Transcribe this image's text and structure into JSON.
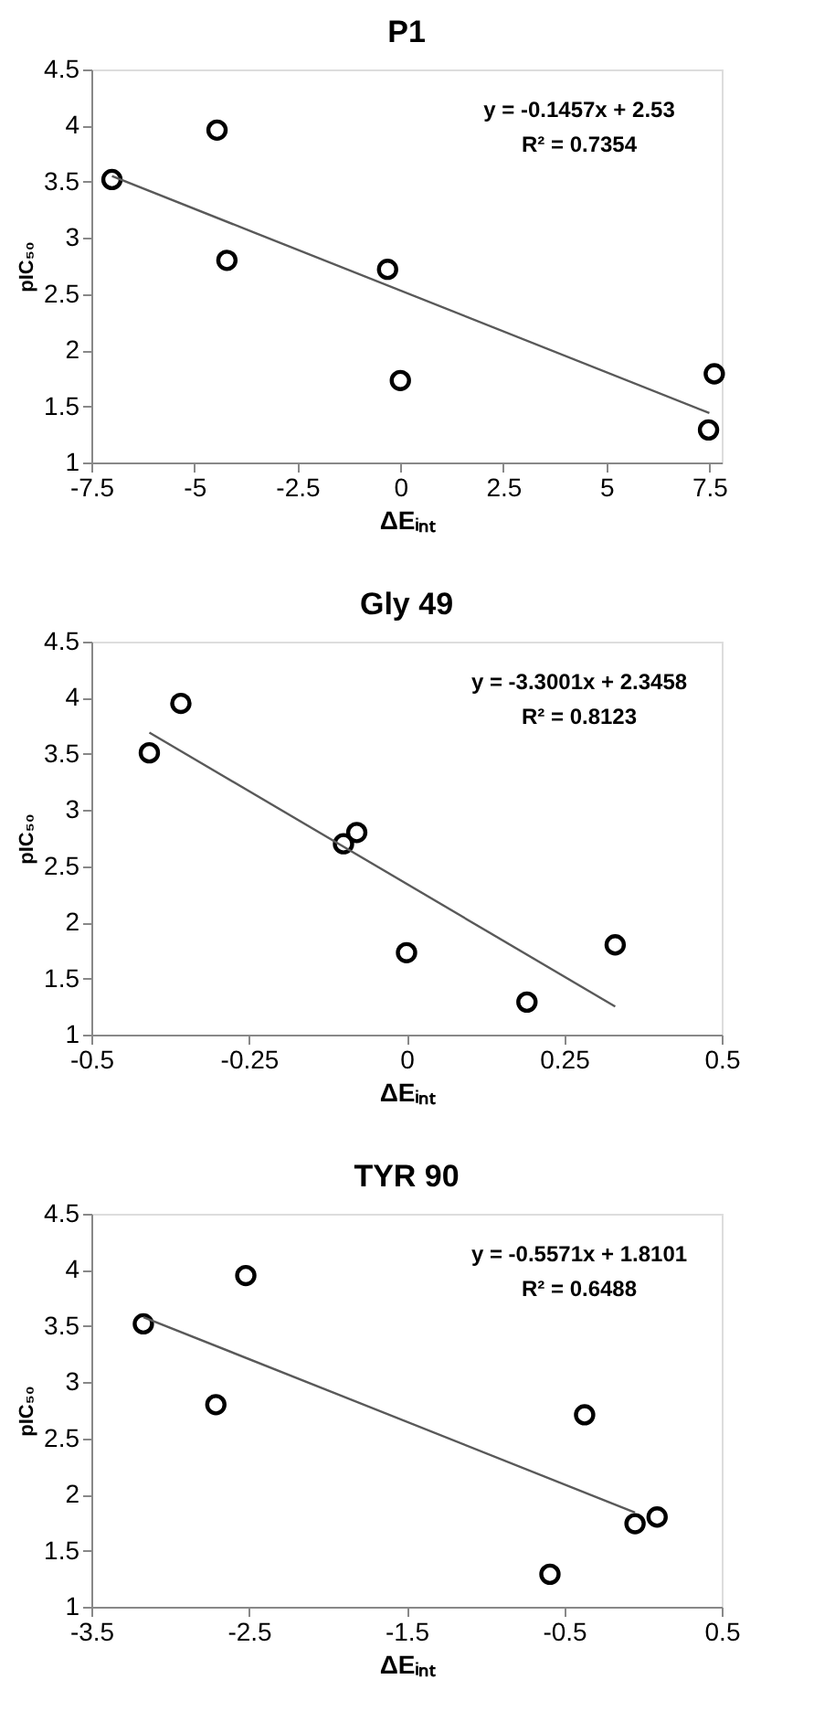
{
  "chart_data": [
    {
      "type": "scatter",
      "title": "P1",
      "xlabel": "ΔEᵢₙₜ",
      "ylabel": "pIC₅₀",
      "xlim": [
        -7.5,
        7.8
      ],
      "xticks": [
        -7.5,
        -5,
        -2.5,
        0,
        2.5,
        5,
        7.5
      ],
      "ylim": [
        1,
        4.5
      ],
      "yticks": [
        1,
        1.5,
        2,
        2.5,
        3,
        3.5,
        4,
        4.5
      ],
      "grid": false,
      "marker": "circle",
      "annotations": [
        "y = -0.1457x + 2.53",
        "R² = 0.7354"
      ],
      "series": [
        {
          "color": "#000000",
          "x": [
            -7.0,
            -4.45,
            -4.21,
            -0.31,
            0.0,
            7.62,
            7.48
          ],
          "values": [
            3.52,
            3.96,
            2.8,
            2.72,
            1.73,
            1.79,
            1.29
          ]
        },
        {
          "type": "line",
          "marker": "none",
          "color": "#595959",
          "x": [
            -7.0,
            7.5
          ],
          "values": [
            3.55,
            1.44
          ]
        }
      ]
    },
    {
      "type": "scatter",
      "title": "Gly 49",
      "xlabel": "ΔEᵢₙₜ",
      "ylabel": "pIC₅₀",
      "xlim": [
        -0.5,
        0.5
      ],
      "xticks": [
        -0.5,
        -0.25,
        0,
        0.25,
        0.5
      ],
      "ylim": [
        1,
        4.5
      ],
      "yticks": [
        1,
        1.5,
        2,
        2.5,
        3,
        3.5,
        4,
        4.5
      ],
      "grid": false,
      "marker": "circle",
      "annotations": [
        "y = -3.3001x + 2.3458",
        "R² = 0.8123"
      ],
      "series": [
        {
          "color": "#000000",
          "x": [
            -0.408,
            -0.358,
            -0.1,
            -0.079,
            0.0,
            0.191,
            0.331
          ],
          "values": [
            3.51,
            3.95,
            2.7,
            2.8,
            1.73,
            1.29,
            1.8
          ]
        },
        {
          "type": "line",
          "marker": "none",
          "color": "#595959",
          "x": [
            -0.408,
            0.331
          ],
          "values": [
            3.69,
            1.25
          ]
        }
      ]
    },
    {
      "type": "scatter",
      "title": "TYR 90",
      "xlabel": "ΔEᵢₙₜ",
      "ylabel": "pIC₅₀",
      "xlim": [
        -3.5,
        0.5
      ],
      "xticks": [
        -3.5,
        -2.5,
        -1.5,
        -0.5,
        0.5
      ],
      "ylim": [
        1,
        4.5
      ],
      "yticks": [
        1,
        1.5,
        2,
        2.5,
        3,
        3.5,
        4,
        4.5
      ],
      "grid": false,
      "marker": "circle",
      "annotations": [
        "y = -0.5571x + 1.8101",
        "R² = 0.6488"
      ],
      "series": [
        {
          "color": "#000000",
          "x": [
            -3.17,
            -2.52,
            -2.71,
            -0.37,
            -0.59,
            -0.05,
            0.09
          ],
          "values": [
            3.52,
            3.95,
            2.8,
            2.71,
            1.29,
            1.74,
            1.8
          ]
        },
        {
          "type": "line",
          "marker": "none",
          "color": "#595959",
          "x": [
            -3.17,
            -0.05
          ],
          "values": [
            3.58,
            1.84
          ]
        }
      ]
    }
  ]
}
